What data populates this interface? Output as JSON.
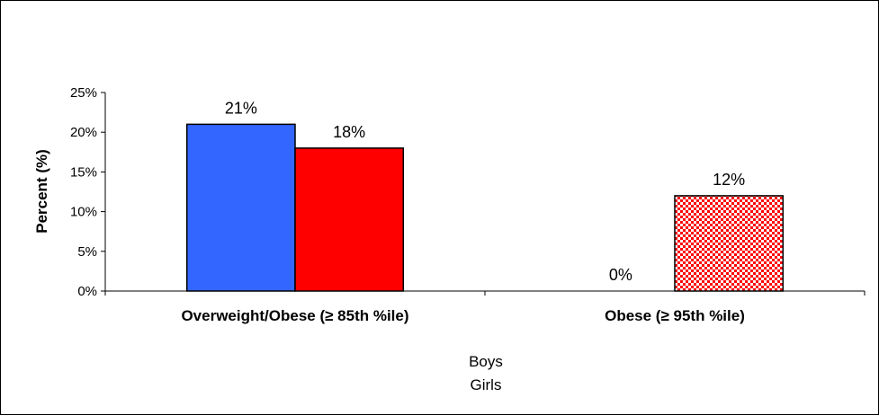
{
  "chart_data": {
    "type": "bar",
    "categories": [
      "Overweight/Obese (≥ 85th %ile)",
      "Obese (≥ 95th %ile)"
    ],
    "series": [
      {
        "name": "Boys",
        "values": [
          21,
          0
        ],
        "color": "#3366ff"
      },
      {
        "name": "Girls",
        "values": [
          18,
          12
        ],
        "color": "#ff0000"
      }
    ],
    "data_labels": [
      [
        "21%",
        "0%"
      ],
      [
        "18%",
        "12%"
      ]
    ],
    "ylabel": "Percent (%)",
    "ylim": [
      0,
      25
    ],
    "yticks": [
      0,
      5,
      10,
      15,
      20,
      25
    ],
    "ytick_labels": [
      "0%",
      "5%",
      "10%",
      "15%",
      "20%",
      "25%"
    ],
    "patterns": {
      "Girls": [
        "solid",
        "checkered"
      ]
    },
    "grid": false,
    "legend": "bottom-center"
  }
}
